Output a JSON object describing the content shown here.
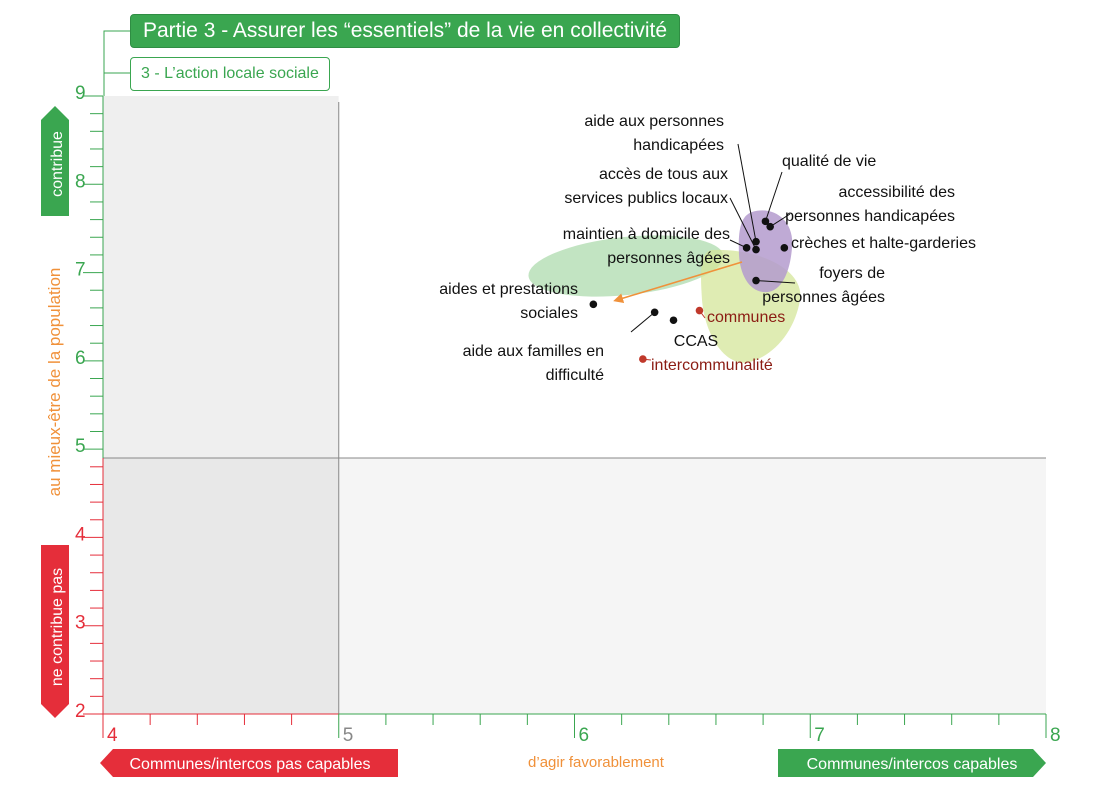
{
  "header": {
    "title": "Partie 3 - Assurer les “essentiels” de la vie en collectivité",
    "subtitle": "3 - L’action locale sociale"
  },
  "colors": {
    "green": "#3aa650",
    "red": "#e52e3a",
    "orange": "#f0913a",
    "dark_red": "#8b1c13",
    "purple_zone": "#b49bce",
    "green_zone": "#8fce8f",
    "yellow_zone": "#d4e59a",
    "quadrant_fill": "#f4f4f4"
  },
  "chart_data": {
    "type": "scatter",
    "xlim": [
      4,
      8
    ],
    "ylim": [
      2,
      9
    ],
    "x_ticks": [
      4,
      5,
      6,
      7,
      8
    ],
    "y_ticks": [
      2,
      3,
      4,
      5,
      6,
      7,
      8,
      9
    ],
    "x_mid": 5,
    "y_mid": 4.9,
    "y_axis": {
      "top_badge": "contribue",
      "bottom_badge": "ne contribue pas",
      "label": "au mieux-être de la population"
    },
    "x_axis": {
      "left_badge": "Communes/intercos pas capables",
      "right_badge": "Communes/intercos capables",
      "label": "d’agir favorablement"
    },
    "points": [
      {
        "label_lines": [
          "aide aux personnes",
          "handicapées"
        ],
        "x": 6.77,
        "y": 7.35,
        "color": "#111111"
      },
      {
        "label_lines": [
          "qualité de vie"
        ],
        "x": 6.81,
        "y": 7.58,
        "color": "#111111"
      },
      {
        "label_lines": [
          "accès de tous aux",
          "services publics locaux"
        ],
        "x": 6.77,
        "y": 7.26,
        "color": "#111111"
      },
      {
        "label_lines": [
          "accessibilité des",
          "personnes handicapées"
        ],
        "x": 6.83,
        "y": 7.52,
        "color": "#111111"
      },
      {
        "label_lines": [
          "maintien à domicile des",
          "personnes âgées"
        ],
        "x": 6.73,
        "y": 7.28,
        "color": "#111111"
      },
      {
        "label_lines": [
          "crèches et halte-garderies"
        ],
        "x": 6.89,
        "y": 7.28,
        "color": "#111111"
      },
      {
        "label_lines": [
          "foyers de",
          "personnes âgées"
        ],
        "x": 6.77,
        "y": 6.91,
        "color": "#111111"
      },
      {
        "label_lines": [
          "aides et prestations",
          "sociales"
        ],
        "x": 6.08,
        "y": 6.64,
        "color": "#111111"
      },
      {
        "label_lines": [
          "aide aux familles en",
          "difficulté"
        ],
        "x": 6.34,
        "y": 6.55,
        "color": "#111111"
      },
      {
        "label_lines": [
          "CCAS"
        ],
        "x": 6.42,
        "y": 6.46,
        "color": "#111111"
      },
      {
        "label_lines": [
          "communes"
        ],
        "x": 6.53,
        "y": 6.57,
        "color": "#c0392b"
      },
      {
        "label_lines": [
          "intercommunalité"
        ],
        "x": 6.29,
        "y": 6.02,
        "color": "#c0392b"
      }
    ]
  }
}
